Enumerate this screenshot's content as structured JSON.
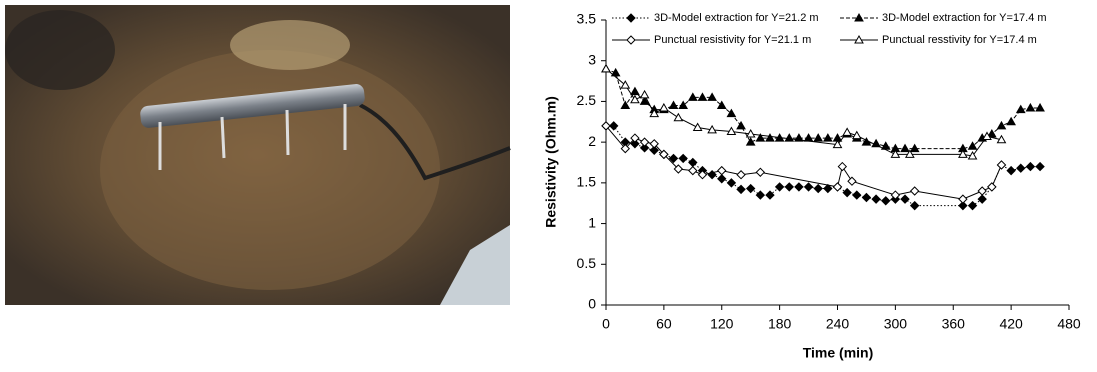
{
  "chart_data": {
    "type": "line",
    "xlabel": "Time (min)",
    "ylabel": "Resistivity (Ohm.m)",
    "xlim": [
      0,
      480
    ],
    "xticks": [
      0,
      60,
      120,
      180,
      240,
      300,
      360,
      420,
      480
    ],
    "ylim": [
      0,
      3.5
    ],
    "yticks": [
      0,
      0.5,
      1,
      1.5,
      2,
      2.5,
      3,
      3.5
    ],
    "grid": false,
    "series": [
      {
        "name": "3D-Model extraction for Y=21.2 m",
        "color": "#000000",
        "marker": "diamond",
        "filled": true,
        "dash": "dotted",
        "x": [
          0,
          8,
          20,
          30,
          40,
          50,
          60,
          70,
          80,
          90,
          100,
          110,
          120,
          130,
          140,
          150,
          160,
          170,
          180,
          190,
          200,
          210,
          220,
          230,
          240,
          250,
          260,
          270,
          280,
          290,
          300,
          310,
          320,
          370,
          380,
          390,
          400,
          410,
          420,
          430,
          440,
          450
        ],
        "values": [
          2.2,
          2.2,
          2.0,
          1.98,
          1.93,
          1.9,
          1.85,
          1.8,
          1.8,
          1.75,
          1.65,
          1.6,
          1.55,
          1.5,
          1.42,
          1.43,
          1.35,
          1.35,
          1.45,
          1.45,
          1.45,
          1.45,
          1.43,
          1.43,
          1.45,
          1.38,
          1.35,
          1.32,
          1.3,
          1.28,
          1.3,
          1.3,
          1.22,
          1.22,
          1.22,
          1.3,
          1.45,
          1.72,
          1.65,
          1.68,
          1.7,
          1.7
        ]
      },
      {
        "name": "3D-Model extraction for Y=17.4 m",
        "color": "#000000",
        "marker": "triangle",
        "filled": true,
        "dash": "dashed",
        "x": [
          0,
          10,
          20,
          30,
          40,
          50,
          60,
          70,
          80,
          90,
          100,
          110,
          120,
          130,
          140,
          150,
          160,
          170,
          180,
          190,
          200,
          210,
          220,
          230,
          240,
          250,
          260,
          270,
          280,
          290,
          300,
          310,
          320,
          370,
          380,
          390,
          400,
          410,
          420,
          430,
          440,
          450
        ],
        "values": [
          2.9,
          2.85,
          2.45,
          2.62,
          2.5,
          2.4,
          2.4,
          2.45,
          2.45,
          2.55,
          2.55,
          2.55,
          2.45,
          2.35,
          2.2,
          2.0,
          2.05,
          2.05,
          2.05,
          2.05,
          2.05,
          2.05,
          2.05,
          2.05,
          2.05,
          2.1,
          2.05,
          2.0,
          1.98,
          1.95,
          1.92,
          1.92,
          1.92,
          1.92,
          1.95,
          2.05,
          2.1,
          2.2,
          2.25,
          2.4,
          2.42,
          2.42
        ]
      },
      {
        "name": "Punctual resistivity for Y=21.1 m",
        "color": "#000000",
        "marker": "diamond",
        "filled": false,
        "dash": "solid",
        "x": [
          0,
          20,
          30,
          40,
          50,
          60,
          75,
          90,
          100,
          120,
          140,
          160,
          240,
          245,
          255,
          300,
          320,
          370,
          390,
          400,
          410
        ],
        "values": [
          2.2,
          1.92,
          2.05,
          2.0,
          1.98,
          1.85,
          1.67,
          1.65,
          1.6,
          1.65,
          1.6,
          1.63,
          1.45,
          1.7,
          1.52,
          1.35,
          1.4,
          1.3,
          1.4,
          1.45,
          1.72
        ]
      },
      {
        "name": "Punctual resstivity for Y=17.4 m",
        "color": "#000000",
        "marker": "triangle",
        "filled": false,
        "dash": "solid",
        "x": [
          0,
          20,
          30,
          40,
          50,
          60,
          75,
          95,
          110,
          130,
          150,
          240,
          250,
          260,
          300,
          315,
          370,
          380,
          395,
          410
        ],
        "values": [
          2.9,
          2.7,
          2.52,
          2.58,
          2.35,
          2.42,
          2.3,
          2.18,
          2.15,
          2.13,
          2.1,
          1.97,
          2.12,
          2.08,
          1.85,
          1.85,
          1.85,
          1.83,
          2.07,
          2.03
        ]
      }
    ]
  }
}
